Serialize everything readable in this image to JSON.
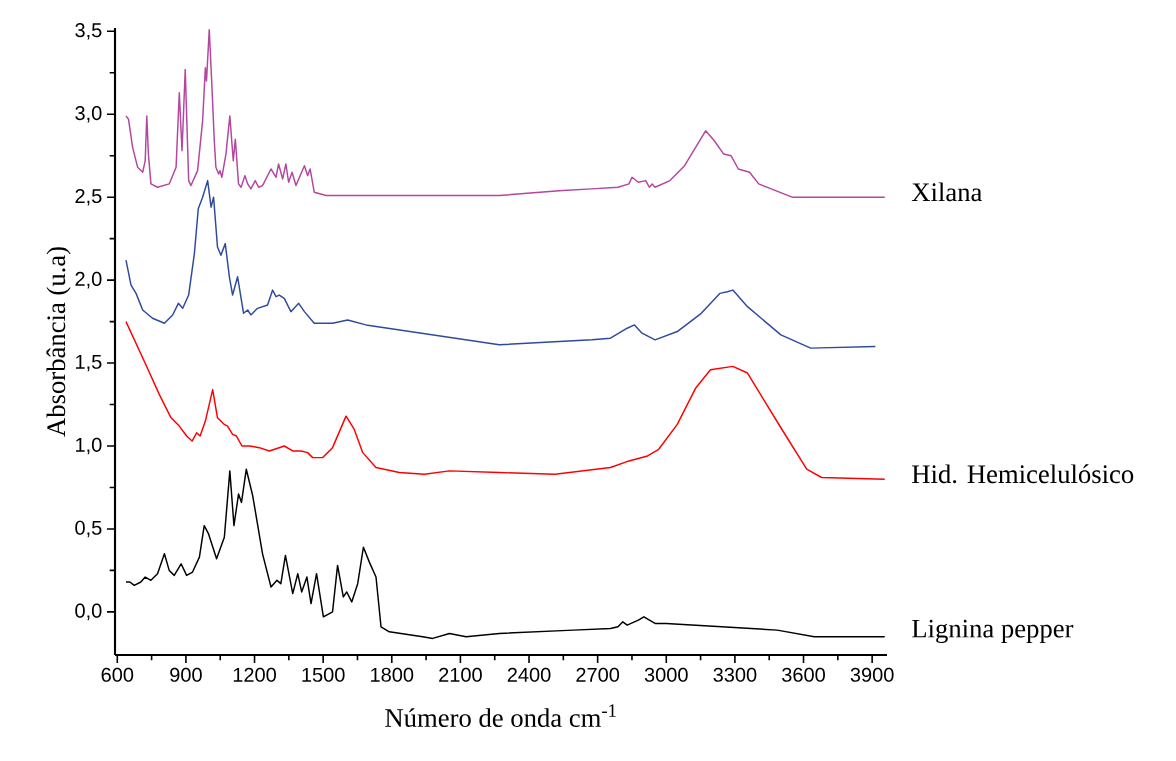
{
  "chart_data": {
    "type": "line",
    "xlabel": "Número de onda cm$^{-1}$",
    "ylabel": "Absorbância (u.a)",
    "xlim": [
      590,
      3965
    ],
    "ylim": [
      -0.26,
      3.52
    ],
    "xticks": [
      600,
      900,
      1200,
      1500,
      1800,
      2100,
      2400,
      2700,
      3000,
      3300,
      3600,
      3900
    ],
    "yticks": [
      {
        "value": 0,
        "label": "0,0"
      },
      {
        "value": 0.5,
        "label": "0,5"
      },
      {
        "value": 1,
        "label": "1,0"
      },
      {
        "value": 1.5,
        "label": "1,5"
      },
      {
        "value": 2,
        "label": "2,0"
      },
      {
        "value": 2.5,
        "label": "2,5"
      },
      {
        "value": 3,
        "label": "3,0"
      },
      {
        "value": 3.5,
        "label": "3,5"
      }
    ],
    "grid": false,
    "legend": false,
    "marker": "none",
    "line_style": "solid",
    "series": [
      {
        "name": "Xilana",
        "color": "#b5459e",
        "x": [
          638,
          649,
          667,
          689,
          711,
          722,
          729,
          736,
          747,
          776,
          827,
          857,
          871,
          883,
          897,
          912,
          922,
          951,
          973,
          985,
          990,
          1002,
          1014,
          1024,
          1031,
          1043,
          1049,
          1057,
          1075,
          1092,
          1107,
          1116,
          1130,
          1141,
          1158,
          1170,
          1184,
          1203,
          1218,
          1235,
          1272,
          1294,
          1305,
          1323,
          1337,
          1349,
          1364,
          1381,
          1418,
          1432,
          1443,
          1461,
          1513,
          1833,
          2270,
          2546,
          2675,
          2789,
          2837,
          2850,
          2878,
          2910,
          2926,
          2938,
          2951,
          3016,
          3080,
          3172,
          3210,
          3251,
          3283,
          3315,
          3364,
          3404,
          3550,
          3955
        ],
        "values": [
          2.99,
          2.97,
          2.8,
          2.68,
          2.65,
          2.72,
          2.99,
          2.76,
          2.58,
          2.56,
          2.58,
          2.68,
          3.13,
          2.78,
          3.27,
          2.6,
          2.57,
          2.66,
          2.96,
          3.28,
          3.2,
          3.51,
          3.16,
          2.84,
          2.68,
          2.64,
          2.66,
          2.62,
          2.76,
          2.99,
          2.72,
          2.85,
          2.58,
          2.56,
          2.63,
          2.58,
          2.55,
          2.6,
          2.56,
          2.57,
          2.67,
          2.62,
          2.7,
          2.61,
          2.7,
          2.59,
          2.65,
          2.57,
          2.69,
          2.63,
          2.67,
          2.53,
          2.51,
          2.51,
          2.51,
          2.54,
          2.55,
          2.56,
          2.58,
          2.62,
          2.59,
          2.6,
          2.56,
          2.58,
          2.56,
          2.6,
          2.69,
          2.9,
          2.84,
          2.76,
          2.75,
          2.67,
          2.65,
          2.58,
          2.5,
          2.5
        ]
      },
      {
        "color": "#2e4a9e",
        "x": [
          638,
          660,
          682,
          711,
          754,
          806,
          842,
          867,
          886,
          912,
          937,
          954,
          973,
          995,
          1010,
          1021,
          1038,
          1053,
          1072,
          1090,
          1104,
          1126,
          1152,
          1170,
          1184,
          1213,
          1257,
          1279,
          1294,
          1308,
          1330,
          1359,
          1393,
          1418,
          1461,
          1541,
          1607,
          1687,
          2270,
          2675,
          2756,
          2829,
          2861,
          2894,
          2951,
          3048,
          3153,
          3234,
          3267,
          3291,
          3355,
          3501,
          3631,
          3914
        ],
        "values": [
          2.12,
          1.97,
          1.92,
          1.82,
          1.77,
          1.74,
          1.79,
          1.86,
          1.83,
          1.91,
          2.16,
          2.43,
          2.5,
          2.6,
          2.44,
          2.5,
          2.2,
          2.15,
          2.22,
          2.02,
          1.91,
          2.02,
          1.8,
          1.82,
          1.79,
          1.83,
          1.85,
          1.94,
          1.9,
          1.91,
          1.89,
          1.81,
          1.86,
          1.81,
          1.74,
          1.74,
          1.76,
          1.73,
          1.61,
          1.64,
          1.65,
          1.71,
          1.73,
          1.68,
          1.64,
          1.69,
          1.8,
          1.92,
          1.93,
          1.94,
          1.84,
          1.67,
          1.59,
          1.6
        ]
      },
      {
        "name": "Hid. Hemicelulósico",
        "color": "#ff0000",
        "x": [
          638,
          725,
          784,
          835,
          871,
          903,
          927,
          947,
          962,
          985,
          1017,
          1038,
          1068,
          1082,
          1104,
          1121,
          1145,
          1177,
          1221,
          1265,
          1330,
          1367,
          1403,
          1432,
          1454,
          1498,
          1541,
          1600,
          1636,
          1673,
          1731,
          1833,
          1942,
          2052,
          2270,
          2513,
          2756,
          2837,
          2918,
          2967,
          3048,
          3129,
          3193,
          3291,
          3355,
          3501,
          3614,
          3679,
          3955
        ],
        "values": [
          1.75,
          1.49,
          1.31,
          1.17,
          1.12,
          1.06,
          1.03,
          1.08,
          1.06,
          1.15,
          1.34,
          1.17,
          1.13,
          1.12,
          1.07,
          1.06,
          1.0,
          1.0,
          0.99,
          0.97,
          1.0,
          0.97,
          0.97,
          0.96,
          0.93,
          0.93,
          0.99,
          1.18,
          1.1,
          0.96,
          0.87,
          0.84,
          0.83,
          0.85,
          0.84,
          0.83,
          0.87,
          0.91,
          0.94,
          0.98,
          1.13,
          1.35,
          1.46,
          1.48,
          1.44,
          1.11,
          0.86,
          0.81,
          0.8
        ]
      },
      {
        "name": "Lignina pepper",
        "color": "#000000",
        "x": [
          638,
          655,
          674,
          703,
          722,
          747,
          776,
          806,
          827,
          849,
          879,
          903,
          929,
          959,
          980,
          999,
          1034,
          1068,
          1092,
          1110,
          1130,
          1143,
          1164,
          1192,
          1235,
          1272,
          1298,
          1315,
          1335,
          1367,
          1389,
          1406,
          1429,
          1447,
          1471,
          1501,
          1541,
          1563,
          1588,
          1603,
          1625,
          1651,
          1676,
          1702,
          1731,
          1753,
          1789,
          1935,
          1979,
          2052,
          2125,
          2270,
          2594,
          2756,
          2789,
          2810,
          2829,
          2878,
          2902,
          2951,
          2999,
          3242,
          3485,
          3647,
          3955
        ],
        "values": [
          0.18,
          0.18,
          0.16,
          0.18,
          0.21,
          0.19,
          0.23,
          0.35,
          0.25,
          0.22,
          0.29,
          0.22,
          0.24,
          0.33,
          0.52,
          0.47,
          0.32,
          0.45,
          0.85,
          0.52,
          0.71,
          0.66,
          0.86,
          0.7,
          0.35,
          0.15,
          0.19,
          0.17,
          0.34,
          0.11,
          0.23,
          0.12,
          0.21,
          0.05,
          0.23,
          -0.03,
          0.0,
          0.28,
          0.09,
          0.12,
          0.06,
          0.17,
          0.39,
          0.3,
          0.21,
          -0.09,
          -0.12,
          -0.15,
          -0.16,
          -0.13,
          -0.15,
          -0.13,
          -0.11,
          -0.1,
          -0.09,
          -0.06,
          -0.08,
          -0.05,
          -0.03,
          -0.07,
          -0.07,
          -0.09,
          -0.11,
          -0.15,
          -0.15
        ]
      }
    ]
  }
}
